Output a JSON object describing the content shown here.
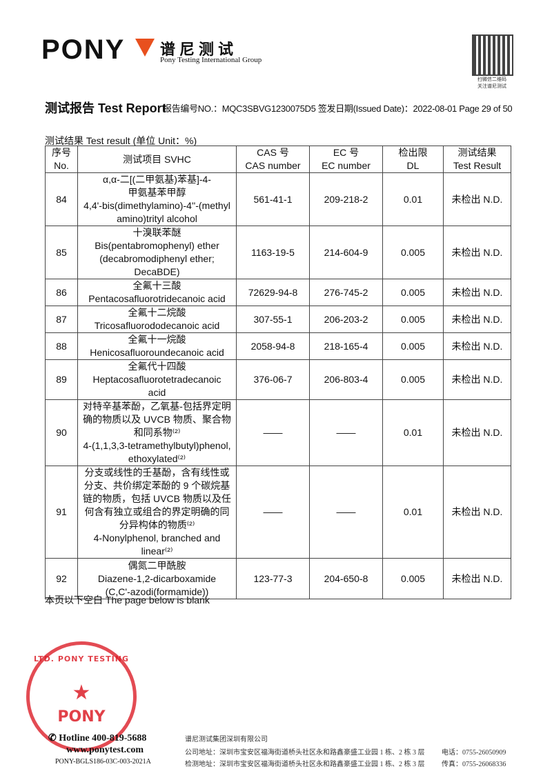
{
  "header": {
    "logo": "PONY",
    "company_cn": "谱尼测试",
    "company_en": "Pony Testing International Group",
    "qr_caption_1": "扫微信二维码",
    "qr_caption_2": "关注谱尼测试"
  },
  "report": {
    "title": "测试报告 Test Report",
    "meta": "报告编号NO.：MQC3SBVG1230075D5 签发日期(Issued Date)：2022-08-01 Page 29 of 50"
  },
  "table": {
    "caption": "测试结果  Test result (单位 Unit：%)",
    "headers": [
      [
        "序号",
        "No."
      ],
      [
        "测试项目  SVHC",
        ""
      ],
      [
        "CAS 号",
        "CAS number"
      ],
      [
        "EC 号",
        "EC number"
      ],
      [
        "检出限",
        "DL"
      ],
      [
        "测试结果",
        "Test Result"
      ]
    ],
    "rows": [
      {
        "no": "84",
        "name": [
          "α,α-二[(二甲氨基)苯基]-4-",
          "甲氨基苯甲醇",
          "4,4'-bis(dimethylamino)-4''-(methyl",
          "amino)trityl alcohol"
        ],
        "cas": "561-41-1",
        "ec": "209-218-2",
        "dl": "0.01",
        "result": "未检出 N.D."
      },
      {
        "no": "85",
        "name": [
          "十溴联苯醚",
          "Bis(pentabromophenyl) ether",
          "(decabromodiphenyl ether;",
          "DecaBDE)"
        ],
        "cas": "1163-19-5",
        "ec": "214-604-9",
        "dl": "0.005",
        "result": "未检出 N.D."
      },
      {
        "no": "86",
        "name": [
          "全氟十三酸",
          "Pentacosafluorotridecanoic acid"
        ],
        "cas": "72629-94-8",
        "ec": "276-745-2",
        "dl": "0.005",
        "result": "未检出 N.D."
      },
      {
        "no": "87",
        "name": [
          "全氟十二烷酸",
          "Tricosafluorododecanoic acid"
        ],
        "cas": "307-55-1",
        "ec": "206-203-2",
        "dl": "0.005",
        "result": "未检出 N.D."
      },
      {
        "no": "88",
        "name": [
          "全氟十一烷酸",
          "Henicosafluoroundecanoic acid"
        ],
        "cas": "2058-94-8",
        "ec": "218-165-4",
        "dl": "0.005",
        "result": "未检出 N.D."
      },
      {
        "no": "89",
        "name": [
          "全氟代十四酸",
          "Heptacosafluorotetradecanoic",
          "acid"
        ],
        "cas": "376-06-7",
        "ec": "206-803-4",
        "dl": "0.005",
        "result": "未检出 N.D."
      },
      {
        "no": "90",
        "name": [
          "对特辛基苯酚，乙氧基-包括界定明",
          "确的物质以及 UVCB 物质、聚合物",
          "和同系物⁽²⁾",
          "4-(1,1,3,3-tetramethylbutyl)phenol,",
          "ethoxylated⁽²⁾"
        ],
        "cas": "——",
        "ec": "——",
        "dl": "0.01",
        "result": "未检出 N.D."
      },
      {
        "no": "91",
        "name": [
          "分支或线性的壬基酚，含有线性或",
          "分支、共价绑定苯酚的 9 个碳烷基",
          "链的物质，包括 UVCB 物质以及任",
          "何含有独立或组合的界定明确的同",
          "分异构体的物质⁽²⁾",
          "4-Nonylphenol, branched and",
          "linear⁽²⁾"
        ],
        "cas": "——",
        "ec": "——",
        "dl": "0.01",
        "result": "未检出 N.D."
      },
      {
        "no": "92",
        "name": [
          "偶氮二甲酰胺",
          "Diazene-1,2-dicarboxamide",
          "(C,C'-azodi(formamide))"
        ],
        "cas": "123-77-3",
        "ec": "204-650-8",
        "dl": "0.005",
        "result": "未检出 N.D."
      }
    ],
    "blank_note": "本页以下空白 The page below is blank"
  },
  "stamp": {
    "text_ring": "PONY TESTING GROUP CO., LTD.",
    "center": "PONY"
  },
  "footer": {
    "hotline": "Hotline 400-819-5688",
    "website": "www.ponytest.com",
    "form_code": "PONY-BGLS186-03C-003-2021A",
    "company": "谱尼测试集团深圳有限公司",
    "address": "公司地址：深圳市宝安区福海街道桥头社区永和路鑫豪盛工业园 1 栋、2 栋 3 层",
    "lab_address": "检测地址：深圳市宝安区福海街道桥头社区永和路鑫豪盛工业园 1 栋、2 栋 3 层",
    "phone": "电话：0755-26050909",
    "fax": "传真：0755-26068336"
  },
  "colors": {
    "stamp": "#dc1e28",
    "logo_accent": "#e8501e"
  }
}
